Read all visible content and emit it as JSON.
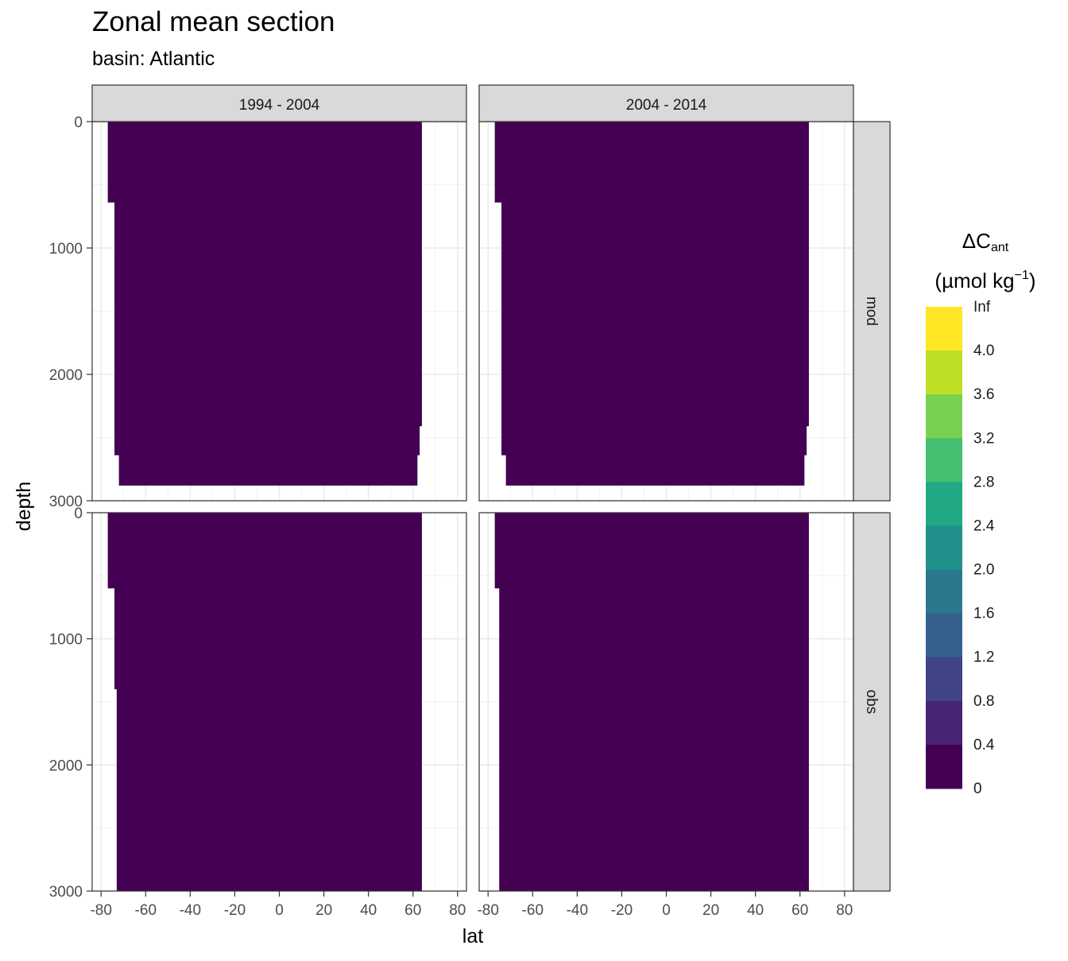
{
  "chart_data": {
    "type": "heatmap",
    "title": "Zonal mean section",
    "subtitle": "basin: Atlantic",
    "xlabel": "lat",
    "ylabel": "depth",
    "xlim": [
      -84,
      84
    ],
    "ylim": [
      3000,
      0
    ],
    "x_ticks": [
      -80,
      -60,
      -40,
      -20,
      0,
      20,
      40,
      60,
      80
    ],
    "y_ticks": [
      0,
      1000,
      2000,
      3000
    ],
    "columns": [
      "1994 - 2004",
      "2004 - 2014"
    ],
    "rows": [
      "mod",
      "obs"
    ],
    "legend": {
      "title": "ΔC",
      "title_sub": "ant",
      "unit": "(µmol kg",
      "unit_sup": "−1",
      "unit_close": ")",
      "position": "right",
      "breaks": [
        "Inf",
        "4.0",
        "3.6",
        "3.2",
        "2.8",
        "2.4",
        "2.0",
        "1.6",
        "1.2",
        "0.8",
        "0.4",
        "0"
      ],
      "colors": [
        "#fde725",
        "#bddf26",
        "#7ad151",
        "#44bf70",
        "#22a884",
        "#21918c",
        "#2a788e",
        "#355f8d",
        "#414487",
        "#482475",
        "#440154"
      ]
    },
    "ocean_extent": [
      {
        "column": "1994 - 2004",
        "row": "mod",
        "south_edge": [
          [
            0,
            -77
          ],
          [
            640,
            -74
          ],
          [
            2640,
            -72
          ],
          [
            2880,
            -72
          ]
        ],
        "north_edge": [
          [
            0,
            64
          ],
          [
            2410,
            63
          ],
          [
            2640,
            62
          ],
          [
            2880,
            61
          ]
        ]
      },
      {
        "column": "2004 - 2014",
        "row": "mod",
        "south_edge": [
          [
            0,
            -77
          ],
          [
            640,
            -74
          ],
          [
            2640,
            -72
          ],
          [
            2880,
            -72
          ]
        ],
        "north_edge": [
          [
            0,
            64
          ],
          [
            2410,
            63
          ],
          [
            2640,
            62
          ],
          [
            2880,
            61
          ]
        ]
      },
      {
        "column": "1994 - 2004",
        "row": "obs",
        "south_edge": [
          [
            0,
            -77
          ],
          [
            600,
            -74
          ],
          [
            1400,
            -73
          ],
          [
            3000,
            -73
          ]
        ],
        "north_edge": [
          [
            0,
            64
          ],
          [
            2500,
            64
          ],
          [
            3000,
            61
          ]
        ]
      },
      {
        "column": "2004 - 2014",
        "row": "obs",
        "south_edge": [
          [
            0,
            -77
          ],
          [
            600,
            -75
          ],
          [
            3000,
            -73
          ]
        ],
        "north_edge": [
          [
            0,
            64
          ],
          [
            2500,
            64
          ],
          [
            3000,
            61
          ]
        ]
      }
    ]
  }
}
